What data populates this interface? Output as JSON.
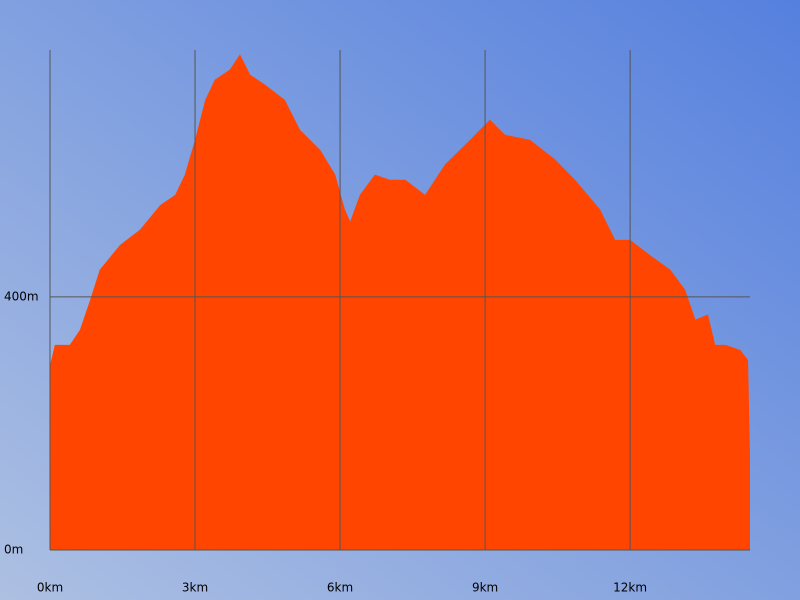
{
  "chart_data": {
    "type": "area",
    "color": "#ff4500",
    "grid": true,
    "x": [
      0,
      0.1,
      0.41,
      0.62,
      0.83,
      1.03,
      1.45,
      1.86,
      2.28,
      2.59,
      2.79,
      3.0,
      3.21,
      3.41,
      3.72,
      3.93,
      4.14,
      4.45,
      4.86,
      5.17,
      5.59,
      5.9,
      6.1,
      6.21,
      6.41,
      6.72,
      7.03,
      7.35,
      7.76,
      8.17,
      8.69,
      9.1,
      9.41,
      9.93,
      10.45,
      10.86,
      11.38,
      11.69,
      12.0,
      12.41,
      12.83,
      13.14,
      13.35,
      13.61,
      13.76,
      13.97,
      14.28,
      14.44,
      14.48
    ],
    "values": [
      292,
      324,
      324,
      348,
      395,
      443,
      482,
      506,
      545,
      561,
      593,
      648,
      711,
      743,
      759,
      783,
      751,
      735,
      711,
      664,
      632,
      593,
      538,
      519,
      561,
      593,
      585,
      585,
      561,
      609,
      648,
      680,
      656,
      648,
      617,
      585,
      538,
      490,
      490,
      466,
      443,
      411,
      364,
      372,
      324,
      324,
      316,
      300,
      150
    ],
    "xlim": [
      0,
      14.48
    ],
    "ylim": [
      0,
      790
    ],
    "xticks": [
      {
        "value": 0,
        "label": "0km"
      },
      {
        "value": 3,
        "label": "3km"
      },
      {
        "value": 6,
        "label": "6km"
      },
      {
        "value": 9,
        "label": "9km"
      },
      {
        "value": 12,
        "label": "12km"
      }
    ],
    "yticks": [
      {
        "value": 0,
        "label": "0m"
      },
      {
        "value": 400,
        "label": "400m"
      }
    ]
  }
}
